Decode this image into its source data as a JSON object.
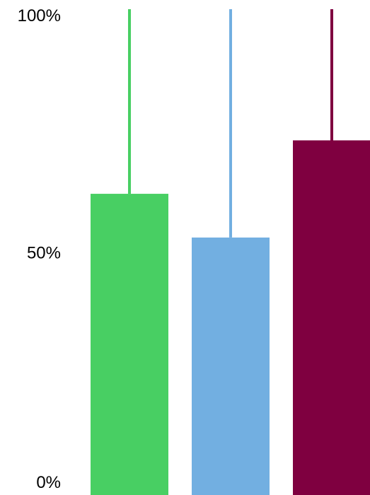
{
  "chart_data": {
    "type": "bar",
    "title": "",
    "xlabel": "",
    "ylabel": "",
    "ylim": [
      0,
      100
    ],
    "yticks": [
      "0%",
      "50%",
      "100%"
    ],
    "ytick_values": [
      0,
      50,
      100
    ],
    "grid": false,
    "legend": "none",
    "categories": [
      "",
      "",
      ""
    ],
    "series": [
      {
        "values": [
          62,
          53,
          73
        ],
        "error_upper": [
          100,
          100,
          100
        ],
        "colors": [
          "#48cf63",
          "#72afe1",
          "#7f0040"
        ]
      }
    ]
  }
}
